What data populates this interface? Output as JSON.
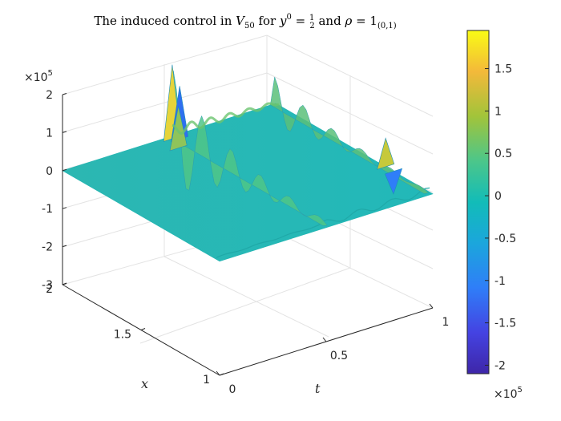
{
  "chart_data": {
    "type": "surface",
    "title_parts": {
      "a": "The induced control in ",
      "b": "V",
      "c": "50",
      "d": " for ",
      "e": "y",
      "f": "0",
      "g": " = ",
      "h": "1",
      "i": "2",
      "j": " and ",
      "k": "ρ",
      "l": " = 1",
      "m": "(0,1)"
    },
    "xlabel": "t",
    "ylabel": "x",
    "t_range": [
      0,
      1
    ],
    "x_range": [
      1,
      2
    ],
    "z_range": [
      -3,
      2
    ],
    "t_ticks": [
      "0",
      "0.5",
      "1"
    ],
    "x_ticks": [
      "1",
      "1.5",
      "2"
    ],
    "z_ticks": [
      "-3",
      "-2",
      "-1",
      "0",
      "1",
      "2"
    ],
    "z_multiplier": "×10",
    "z_multiplier_exp": "5",
    "colorbar": {
      "range": [
        -2.1,
        1.95
      ],
      "ticks": [
        "1.5",
        "1",
        "0.5",
        "0",
        "-0.5",
        "-1",
        "-1.5",
        "-2"
      ],
      "multiplier": "×10",
      "multiplier_exp": "5",
      "colormap": "parula"
    },
    "surface_description_values": {
      "base_level": 0,
      "t_spikes": [
        0.5,
        1
      ],
      "spike_peak_near_t_half": 1.9,
      "spike_peak_near_t_one": 0.7
    }
  }
}
